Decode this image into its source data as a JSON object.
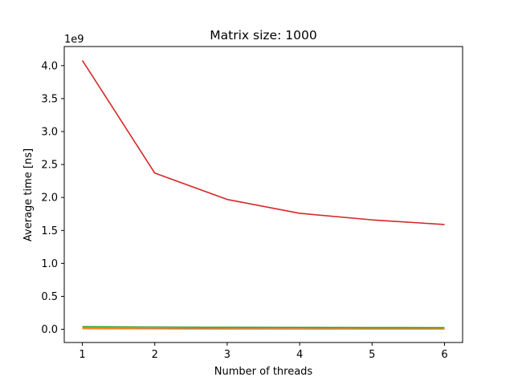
{
  "chart_data": {
    "type": "line",
    "title": "Matrix size: 1000",
    "xlabel": "Number of threads",
    "ylabel": "Average time [ns]",
    "y_offset_label": "1e9",
    "y_scale": 1000000000,
    "x": [
      1,
      2,
      3,
      4,
      5,
      6
    ],
    "xlim": [
      0.75,
      6.25
    ],
    "ylim": [
      -0.2,
      4.29
    ],
    "x_ticks": [
      1,
      2,
      3,
      4,
      5,
      6
    ],
    "y_ticks": [
      0.0,
      0.5,
      1.0,
      1.5,
      2.0,
      2.5,
      3.0,
      3.5,
      4.0
    ],
    "x_tick_labels": [
      "1",
      "2",
      "3",
      "4",
      "5",
      "6"
    ],
    "y_tick_labels": [
      "0.0",
      "0.5",
      "1.0",
      "1.5",
      "2.0",
      "2.5",
      "3.0",
      "3.5",
      "4.0"
    ],
    "grid": false,
    "series": [
      {
        "color": "#1f77b4",
        "values": [
          15000000,
          10000000,
          8000000,
          7000000,
          6000000,
          6000000
        ]
      },
      {
        "color": "#ff7f0e",
        "values": [
          10000000,
          7000000,
          6000000,
          5000000,
          4000000,
          4000000
        ]
      },
      {
        "color": "#2ca02c",
        "values": [
          40000000,
          33000000,
          30000000,
          28000000,
          26000000,
          25000000
        ]
      },
      {
        "color": "#d62728",
        "values": [
          4080000000,
          2370000000,
          1970000000,
          1760000000,
          1660000000,
          1590000000
        ]
      }
    ]
  }
}
